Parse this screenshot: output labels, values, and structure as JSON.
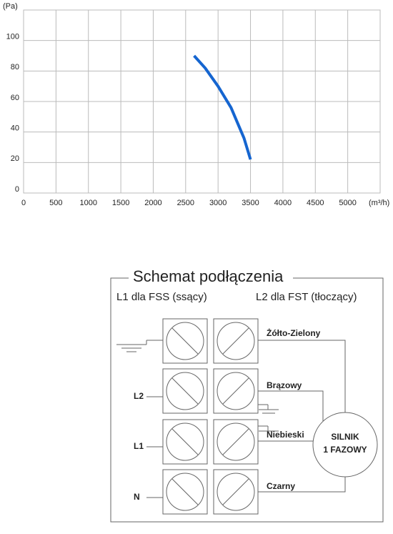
{
  "chart_data": {
    "type": "line",
    "y_label": "(Pa)",
    "x_label": "(m³/h)",
    "x": [
      2630,
      2800,
      3000,
      3200,
      3400,
      3500
    ],
    "series": [
      {
        "color": "#1565d0",
        "values": [
          90,
          82,
          70,
          56,
          36,
          22
        ]
      }
    ],
    "xlim": [
      0,
      5500
    ],
    "xticks": [
      0,
      500,
      1000,
      1500,
      2000,
      2500,
      3000,
      3500,
      4000,
      4500,
      5000
    ],
    "ylim": [
      0,
      120
    ],
    "yticks": [
      0,
      20,
      40,
      60,
      80,
      100
    ],
    "grid": true
  },
  "diagram": {
    "title": "Schemat podłączenia",
    "left_caption": "L1 dla FSS (ssący)",
    "right_caption": "L2 dla FST (tłoczący)",
    "wires": [
      "Żółto-Zielony",
      "Brązowy",
      "Niebieski",
      "Czarny"
    ],
    "inputs": [
      "L2",
      "L1",
      "N"
    ],
    "motor": [
      "SILNIK",
      "1 FAZOWY"
    ]
  }
}
